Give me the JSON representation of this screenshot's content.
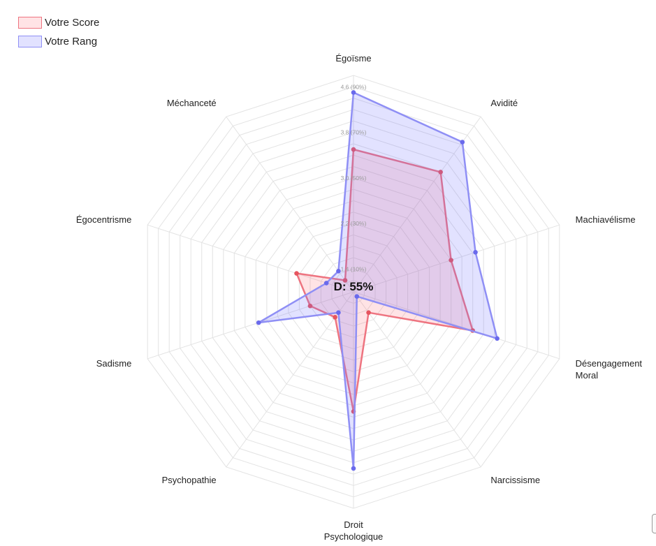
{
  "colors": {
    "score_fill": "rgba(255,99,110,0.18)",
    "score_line": "#ee7480",
    "score_point": "#e6555f",
    "rank_fill": "rgba(110,110,255,0.20)",
    "rank_line": "#8f8ff5",
    "rank_point": "#6a6aec",
    "grid": "#e3e3e3"
  },
  "legend": [
    {
      "label": "Votre Score",
      "color_key": "score"
    },
    {
      "label": "Votre Rang",
      "color_key": "rank"
    }
  ],
  "center_label": "D: 55%",
  "chart_data": {
    "type": "radar",
    "axes": [
      "Égoïsme",
      "Avidité",
      "Machiavélisme",
      "Désengagement Moral",
      "Narcissisme",
      "Droit Psychologique",
      "Psychopathie",
      "Sadisme",
      "Égocentrisme",
      "Méchanceté"
    ],
    "r_min": 1,
    "r_max": 4.8,
    "grid_rings": 19,
    "grid": true,
    "ticks": [
      "1.4  (10%)",
      "2.2  (30%)",
      "3.0  (50%)",
      "3.8  (70%)",
      "4.6  (90%)"
    ],
    "tick_values": [
      1.4,
      2.2,
      3.0,
      3.8,
      4.6
    ],
    "legend_position": "top-left",
    "series": [
      {
        "name": "Votre Score",
        "color_key": "score",
        "values": [
          3.5,
          3.6,
          2.8,
          3.2,
          1.45,
          3.1,
          1.55,
          1.8,
          2.05,
          1.25
        ]
      },
      {
        "name": "Votre Rang",
        "color_key": "rank",
        "values": [
          4.5,
          4.25,
          3.25,
          3.65,
          1.1,
          4.1,
          1.45,
          2.75,
          1.5,
          1.45
        ]
      }
    ]
  }
}
